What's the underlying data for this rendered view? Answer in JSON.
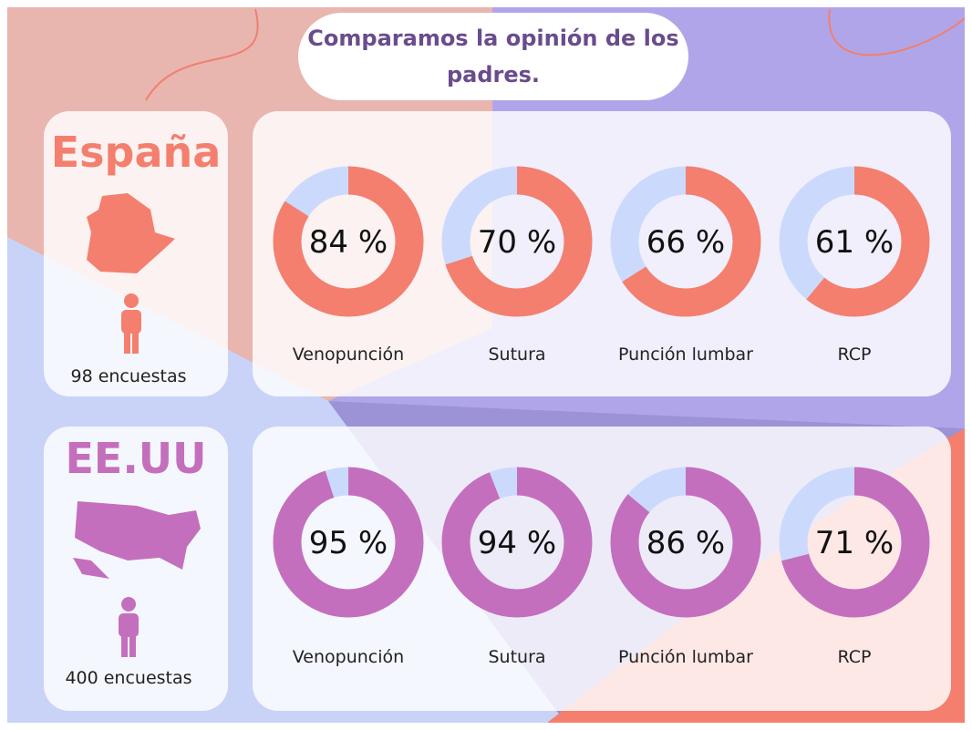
{
  "title": "Comparamos la opinión de los padres.",
  "groups": [
    {
      "name": "España",
      "surveys": "98 encuestas",
      "chart_data": {
        "type": "donut",
        "categories": [
          "Venopunción",
          "Sutura",
          "Punción lumbar",
          "RCP"
        ],
        "values": [
          84,
          70,
          66,
          61
        ],
        "value_labels": [
          "84 %",
          "70 %",
          "66 %",
          "61 %"
        ],
        "color": "#f47f6e",
        "track_color": "#cbdafc"
      }
    },
    {
      "name": "EE.UU",
      "surveys": "400 encuestas",
      "chart_data": {
        "type": "donut",
        "categories": [
          "Venopunción",
          "Sutura",
          "Punción lumbar",
          "RCP"
        ],
        "values": [
          95,
          94,
          86,
          71
        ],
        "value_labels": [
          "95 %",
          "94 %",
          "86 %",
          "71 %"
        ],
        "color": "#c46fbd",
        "track_color": "#cbdafc"
      }
    }
  ]
}
